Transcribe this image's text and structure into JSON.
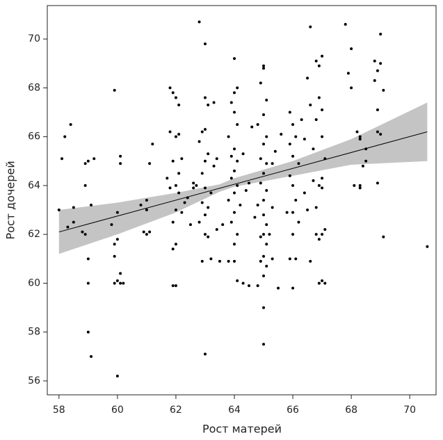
{
  "chart_data": {
    "type": "scatter",
    "xlabel": "Рост матерей",
    "ylabel": "Рост дочерей",
    "xlim": [
      57.6,
      70.9
    ],
    "ylim": [
      55.43,
      71.37
    ],
    "xticks": [
      58,
      60,
      62,
      64,
      66,
      68,
      70
    ],
    "yticks": [
      56,
      58,
      60,
      62,
      64,
      66,
      68,
      70
    ],
    "point_color": "#000000",
    "fit": {
      "color": "#000000",
      "x": [
        58,
        70.6
      ],
      "values": [
        62.1,
        66.2
      ]
    },
    "band": {
      "color": "#c4c4c4",
      "x": [
        58,
        60,
        62,
        63.5,
        64,
        66,
        68,
        70.6
      ],
      "lower": [
        61.2,
        62.0,
        62.9,
        63.75,
        63.95,
        64.4,
        64.85,
        65.0
      ],
      "upper": [
        63.0,
        63.3,
        63.7,
        64.05,
        64.3,
        65.0,
        65.9,
        67.4
      ]
    },
    "x": [
      58,
      58.1,
      58.2,
      58.3,
      58.4,
      58.5,
      58.5,
      58.9,
      58.9,
      58.9,
      59.0,
      59.0,
      59.0,
      59.1,
      59.1,
      59.2,
      59.0,
      58.8,
      59.8,
      59.9,
      59.9,
      60.0,
      60.0,
      60.0,
      59.9,
      60.1,
      60.2,
      60.1,
      60.1,
      60.0,
      60.1,
      59.9,
      60.8,
      60.9,
      61.0,
      61.1,
      61.0,
      61.1,
      61.2,
      61.0,
      61.8,
      61.9,
      62.0,
      62.1,
      61.8,
      62.0,
      62.1,
      61.9,
      62.0,
      61.8,
      62.1,
      62.0,
      62.2,
      61.9,
      62.0,
      61.9,
      62.0,
      61.9,
      62.1,
      62.2,
      62.3,
      61.7,
      62.8,
      63.0,
      63.0,
      63.1,
      62.9,
      63.0,
      62.8,
      63.1,
      63.0,
      62.9,
      62.7,
      63.0,
      63.2,
      62.9,
      63.1,
      63.0,
      62.8,
      63.0,
      63.1,
      63.2,
      62.9,
      63.0,
      62.6,
      62.5,
      62.4,
      62.6,
      63.3,
      63.4,
      63.3,
      63.4,
      63.5,
      63.6,
      64.0,
      64.1,
      64.0,
      63.9,
      64.0,
      64.1,
      63.8,
      64.0,
      63.9,
      64.1,
      64.0,
      63.9,
      64.1,
      64.0,
      63.8,
      64.2,
      64.0,
      63.9,
      64.1,
      64.0,
      63.8,
      64.0,
      64.1,
      64.3,
      64.5,
      64.4,
      64.3,
      64.6,
      64.5,
      64.7,
      65.0,
      65.0,
      64.9,
      65.1,
      65.0,
      64.8,
      65.1,
      65.0,
      64.9,
      65.1,
      65.0,
      64.9,
      65.1,
      65.0,
      64.8,
      65.0,
      65.1,
      65.0,
      64.9,
      65.1,
      65.0,
      64.9,
      65.1,
      65.0,
      64.8,
      65.0,
      65.0,
      65.3,
      65.2,
      65.3,
      65.5,
      65.4,
      65.6,
      65.3,
      65.9,
      66.0,
      66.1,
      65.9,
      66.0,
      66.2,
      65.9,
      66.0,
      66.1,
      65.8,
      66.0,
      66.2,
      66.0,
      66.1,
      65.9,
      66.0,
      66.3,
      66.4,
      66.6,
      66.5,
      66.5,
      66.6,
      66.7,
      66.4,
      66.6,
      66.8,
      67.0,
      66.9,
      66.9,
      67.0,
      66.8,
      67.0,
      67.1,
      66.9,
      67.0,
      66.8,
      67.0,
      66.9,
      67.1,
      66.9,
      67.0,
      67.1,
      66.8,
      66.7,
      67.0,
      67.8,
      68.0,
      67.9,
      68.0,
      68.1,
      68.3,
      68.2,
      68.3,
      68.3,
      68.3,
      68.5,
      68.5,
      68.4,
      68.8,
      68.9,
      69.0,
      68.8,
      68.9,
      69.0,
      69.1,
      68.9,
      69.0,
      68.9,
      69.1,
      70.6
    ],
    "values": [
      63.0,
      65.1,
      66.0,
      62.3,
      66.5,
      63.1,
      62.5,
      62.0,
      64.0,
      64.9,
      60.0,
      58.0,
      61.0,
      57.0,
      63.2,
      65.1,
      65.0,
      62.1,
      62.4,
      61.1,
      60.0,
      60.1,
      61.8,
      62.9,
      67.9,
      60.0,
      60.0,
      65.2,
      64.9,
      56.2,
      60.4,
      61.6,
      63.2,
      62.1,
      62.0,
      62.1,
      63.0,
      64.9,
      65.7,
      63.4,
      68.0,
      67.8,
      67.6,
      67.3,
      66.2,
      66.0,
      66.1,
      65.0,
      64.0,
      63.9,
      63.7,
      63.0,
      62.9,
      62.5,
      61.6,
      61.4,
      59.9,
      59.9,
      64.5,
      65.1,
      63.3,
      64.3,
      70.7,
      69.8,
      67.6,
      67.3,
      66.2,
      66.3,
      65.8,
      65.3,
      65.0,
      64.5,
      64.0,
      63.9,
      63.7,
      63.3,
      63.1,
      62.8,
      62.5,
      62.0,
      61.9,
      61.0,
      60.9,
      57.1,
      63.9,
      62.4,
      63.5,
      64.1,
      64.8,
      65.1,
      67.4,
      62.2,
      60.9,
      62.4,
      69.2,
      68.0,
      67.8,
      67.4,
      67.0,
      66.5,
      66.0,
      65.5,
      65.2,
      65.0,
      64.6,
      64.3,
      64.0,
      63.7,
      63.4,
      63.2,
      62.9,
      62.5,
      62.0,
      61.6,
      60.9,
      60.9,
      60.1,
      60.0,
      59.9,
      63.8,
      65.3,
      66.4,
      64.1,
      62.7,
      68.9,
      68.8,
      68.2,
      67.5,
      66.9,
      66.5,
      66.0,
      65.7,
      65.1,
      64.9,
      64.5,
      64.1,
      63.8,
      63.4,
      63.2,
      62.8,
      62.4,
      62.0,
      61.9,
      61.6,
      61.1,
      60.9,
      60.7,
      60.3,
      59.9,
      59.0,
      57.5,
      64.9,
      62.0,
      61.0,
      59.8,
      65.4,
      66.1,
      63.1,
      67.0,
      66.5,
      66.0,
      65.7,
      65.2,
      64.9,
      64.4,
      64.0,
      63.4,
      62.9,
      62.9,
      62.5,
      62.0,
      61.0,
      61.0,
      59.8,
      66.7,
      65.9,
      67.3,
      68.4,
      63.0,
      60.9,
      64.2,
      63.7,
      70.5,
      69.1,
      69.3,
      68.9,
      67.6,
      67.1,
      66.7,
      66.0,
      65.1,
      64.0,
      63.9,
      63.1,
      62.0,
      61.8,
      62.2,
      60.0,
      60.1,
      60.0,
      62.0,
      65.5,
      64.3,
      70.6,
      69.6,
      68.6,
      68.0,
      64.0,
      64.0,
      66.2,
      66.0,
      65.9,
      63.9,
      65.5,
      65.0,
      64.8,
      69.1,
      68.7,
      69.0,
      68.3,
      67.1,
      70.2,
      67.9,
      66.2,
      66.1,
      64.1,
      61.9,
      61.5
    ]
  }
}
